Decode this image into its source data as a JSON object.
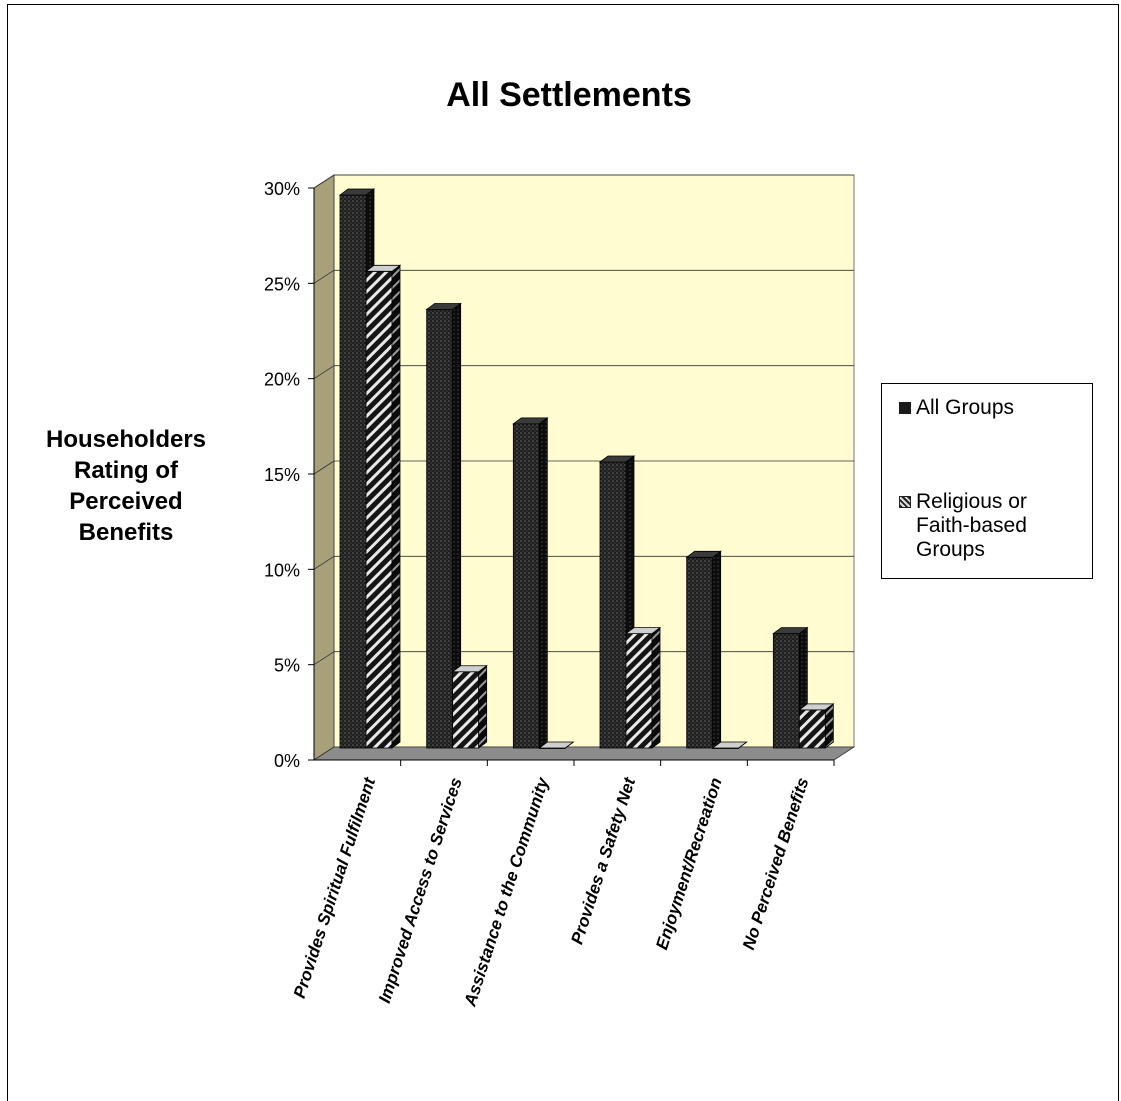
{
  "chart_data": {
    "type": "bar",
    "title": "All Settlements",
    "ylabel": "Householders Rating of Perceived Benefits",
    "xlabel": "",
    "ylim": [
      0,
      0.3
    ],
    "y_ticks": [
      "0%",
      "5%",
      "10%",
      "15%",
      "20%",
      "25%",
      "30%"
    ],
    "grid": true,
    "legend_position": "right",
    "categories": [
      "Provides Spiritual Fulfilment",
      "Improved Access to Services",
      "Assistance to the Community",
      "Provides a Safety Net",
      "Enjoyment/Recreation",
      "No Perceived Benefits"
    ],
    "series": [
      {
        "name": "All Groups",
        "values": [
          0.29,
          0.23,
          0.17,
          0.15,
          0.1,
          0.06
        ]
      },
      {
        "name": "Religious or Faith-based Groups",
        "values": [
          0.25,
          0.04,
          0.0,
          0.06,
          0.0,
          0.02
        ]
      }
    ],
    "colors": {
      "plot_back": "#fffcd2",
      "side_wall": "#a8a07a",
      "floor": "#8c8c8c",
      "series1": "#2b2b2b",
      "series2": "#3a3a3a"
    }
  },
  "legend": {
    "items": [
      {
        "lines": [
          "All Groups"
        ]
      },
      {
        "lines": [
          "Religious or",
          "Faith-based",
          "Groups"
        ]
      }
    ]
  }
}
